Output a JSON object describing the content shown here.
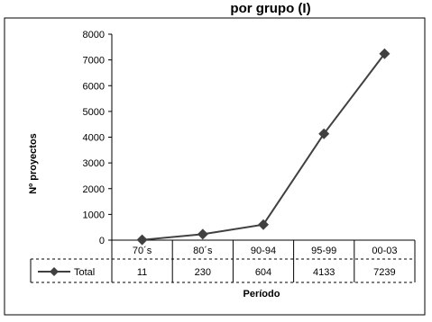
{
  "chart_data": {
    "type": "line",
    "title": "Proyectos por periodo",
    "title_visible_fragment": "por grupo (I)",
    "xlabel": "Período",
    "ylabel": "Nº proyectos",
    "categories": [
      "70´s",
      "80´s",
      "90-94",
      "95-99",
      "00-03"
    ],
    "series": [
      {
        "name": "Total",
        "values": [
          11,
          230,
          604,
          4133,
          7239
        ],
        "color": "#404040",
        "marker": "diamond"
      }
    ],
    "ylim": [
      0,
      8000
    ],
    "yticks": [
      0,
      1000,
      2000,
      3000,
      4000,
      5000,
      6000,
      7000,
      8000
    ],
    "grid": false,
    "data_table": true,
    "legend": "data-table"
  }
}
